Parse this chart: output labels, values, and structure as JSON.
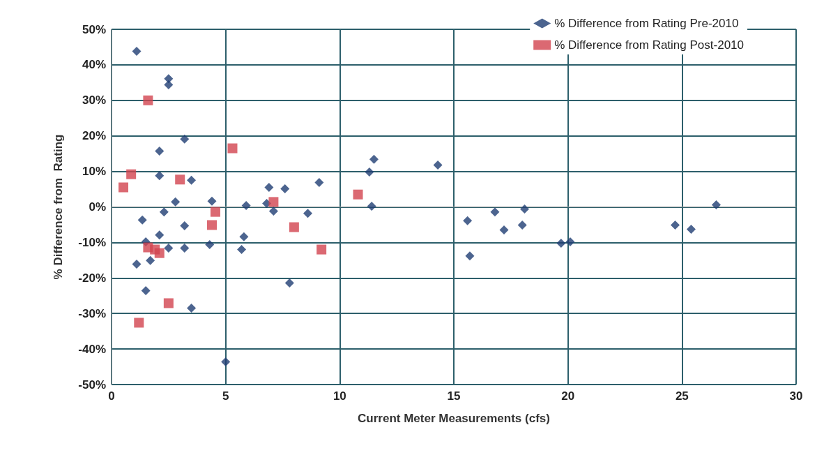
{
  "chart_data": {
    "type": "scatter",
    "xlabel": "Current Meter Measurements (cfs)",
    "ylabel": "% Difference from  Rating",
    "xlim": [
      0,
      30
    ],
    "xticks": [
      0,
      5,
      10,
      15,
      20,
      25,
      30
    ],
    "ylim": [
      -50,
      50
    ],
    "yticks": [
      {
        "value": -50,
        "label": "-50%"
      },
      {
        "value": -40,
        "label": "-40%"
      },
      {
        "value": -30,
        "label": "-30%"
      },
      {
        "value": -20,
        "label": "-20%"
      },
      {
        "value": -10,
        "label": "-10%"
      },
      {
        "value": 0,
        "label": "0%"
      },
      {
        "value": 10,
        "label": "10%"
      },
      {
        "value": 20,
        "label": "20%"
      },
      {
        "value": 30,
        "label": "30%"
      },
      {
        "value": 40,
        "label": "40%"
      },
      {
        "value": 50,
        "label": "50%"
      }
    ],
    "grid": true,
    "legend": "top right",
    "series": [
      {
        "name": "% Difference from Rating Pre-2010",
        "color": "#1f3d73",
        "marker": "diamond",
        "x": [
          1.1,
          2.5,
          2.5,
          3.2,
          2.1,
          2.1,
          3.5,
          3.1,
          2.8,
          4.4,
          5.9,
          2.3,
          1.35,
          3.2,
          2.1,
          5.8,
          1.5,
          2.5,
          3.2,
          4.3,
          5.7,
          1.7,
          1.1,
          1.5,
          3.5,
          5.0,
          11.5,
          11.3,
          6.9,
          7.6,
          9.1,
          6.8,
          7.1,
          8.6,
          11.4,
          7.8,
          14.3,
          15.6,
          15.7,
          16.8,
          17.2,
          18.1,
          18.0,
          19.7,
          20.1,
          24.7,
          25.4,
          26.5
        ],
        "values": [
          43.8,
          36.1,
          34.4,
          19.1,
          15.7,
          8.8,
          7.5,
          null,
          1.4,
          1.6,
          0.4,
          -1.4,
          -3.7,
          -5.3,
          -7.9,
          -8.4,
          -9.8,
          -11.6,
          -11.6,
          -10.6,
          -12,
          -15.1,
          -16.1,
          -23.6,
          -28.5,
          -43.6,
          13.4,
          9.8,
          5.5,
          5.1,
          6.9,
          1.0,
          -1.2,
          -1.8,
          0.2,
          -21.4,
          11.8,
          -3.9,
          -13.8,
          -1.4,
          -6.5,
          -0.6,
          -5.1,
          -10.2,
          -9.8,
          -5.1,
          -6.3,
          0.6
        ]
      },
      {
        "name": "% Difference from Rating Post-2010",
        "color": "#d2434f",
        "marker": "square",
        "x": [
          1.6,
          5.3,
          0.86,
          0.52,
          3.0,
          4.55,
          4.4,
          1.6,
          2.1,
          1.9,
          2.5,
          1.2,
          7.1,
          8.0,
          9.2,
          10.8
        ],
        "values": [
          30,
          16.5,
          9.2,
          5.5,
          7.7,
          -1.4,
          -5.1,
          -11.4,
          -13.0,
          -12.0,
          -27.1,
          -32.6,
          1.4,
          -5.7,
          -12,
          3.5
        ]
      }
    ]
  }
}
